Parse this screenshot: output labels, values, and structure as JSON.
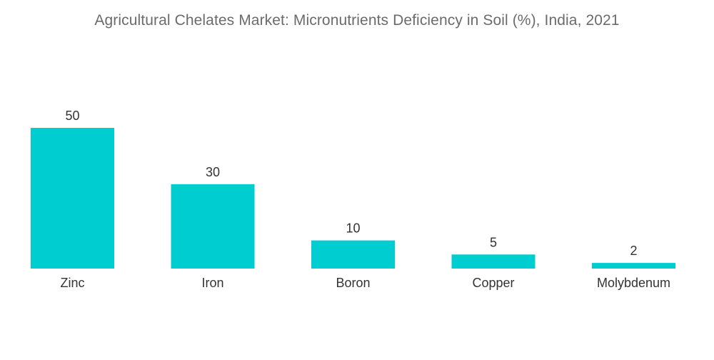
{
  "title": "Agricultural Chelates Market: Micronutrients Deficiency in Soil (%), India, 2021",
  "colors": {
    "bar": "#00cdd0",
    "text": "#333333",
    "title": "#6b6b6b"
  },
  "chart_data": {
    "type": "bar",
    "title": "Agricultural Chelates Market: Micronutrients Deficiency in Soil (%), India, 2021",
    "categories": [
      "Zinc",
      "Iron",
      "Boron",
      "Copper",
      "Molybdenum"
    ],
    "values": [
      50,
      30,
      10,
      5,
      2
    ],
    "xlabel": "",
    "ylabel": "",
    "ylim": [
      0,
      50
    ],
    "grid": false,
    "legend": "none",
    "data_labels": true
  }
}
